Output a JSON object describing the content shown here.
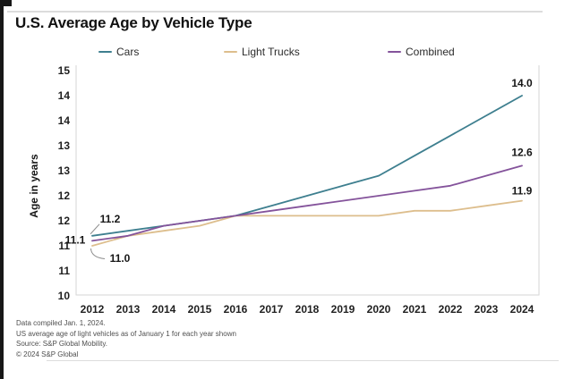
{
  "page": {
    "footer": [
      "Data compiled Jan. 1, 2024.",
      "US average age of light vehicles as of January 1 for each year shown",
      "Source: S&P Global Mobility.",
      "© 2024 S&P Global"
    ]
  },
  "colors": {
    "cars": "#3e7f8f",
    "light_trucks": "#ddbe8d",
    "combined": "#84539b",
    "axis_line": "#d6d6d6",
    "leader_line": "#8a8a8a",
    "text": "#1f1f1f",
    "footer_text": "#4f4f4f"
  },
  "chart_data": {
    "type": "line",
    "title": "U.S. Average Age by Vehicle Type",
    "xlabel": "",
    "ylabel": "Age in years",
    "grid": false,
    "legend_position": "top",
    "ylim": [
      10,
      14.5
    ],
    "x": [
      2012,
      2013,
      2014,
      2015,
      2016,
      2017,
      2018,
      2019,
      2020,
      2021,
      2022,
      2023,
      2024
    ],
    "y_ticks": [
      {
        "value": 14.5,
        "label": "15"
      },
      {
        "value": 14.0,
        "label": "14"
      },
      {
        "value": 13.5,
        "label": "14"
      },
      {
        "value": 13.0,
        "label": "13"
      },
      {
        "value": 12.5,
        "label": "13"
      },
      {
        "value": 12.0,
        "label": "12"
      },
      {
        "value": 11.5,
        "label": "12"
      },
      {
        "value": 11.0,
        "label": "11"
      },
      {
        "value": 10.5,
        "label": "11"
      },
      {
        "value": 10.0,
        "label": "10"
      }
    ],
    "series": [
      {
        "name": "Cars",
        "color": "#3e7f8f",
        "values": [
          11.2,
          11.3,
          11.4,
          11.5,
          11.6,
          11.8,
          12.0,
          12.2,
          12.4,
          12.8,
          13.2,
          13.6,
          14.0
        ],
        "start_label": "11.2",
        "end_label": "14.0"
      },
      {
        "name": "Light Trucks",
        "color": "#ddbe8d",
        "values": [
          11.0,
          11.2,
          11.3,
          11.4,
          11.6,
          11.6,
          11.6,
          11.6,
          11.6,
          11.7,
          11.7,
          11.8,
          11.9
        ],
        "start_label": "11.0",
        "end_label": "11.9"
      },
      {
        "name": "Combined",
        "color": "#84539b",
        "values": [
          11.1,
          11.2,
          11.4,
          11.5,
          11.6,
          11.7,
          11.8,
          11.9,
          12.0,
          12.1,
          12.2,
          12.4,
          12.6
        ],
        "start_label": "11.1",
        "end_label": "12.6"
      }
    ]
  }
}
